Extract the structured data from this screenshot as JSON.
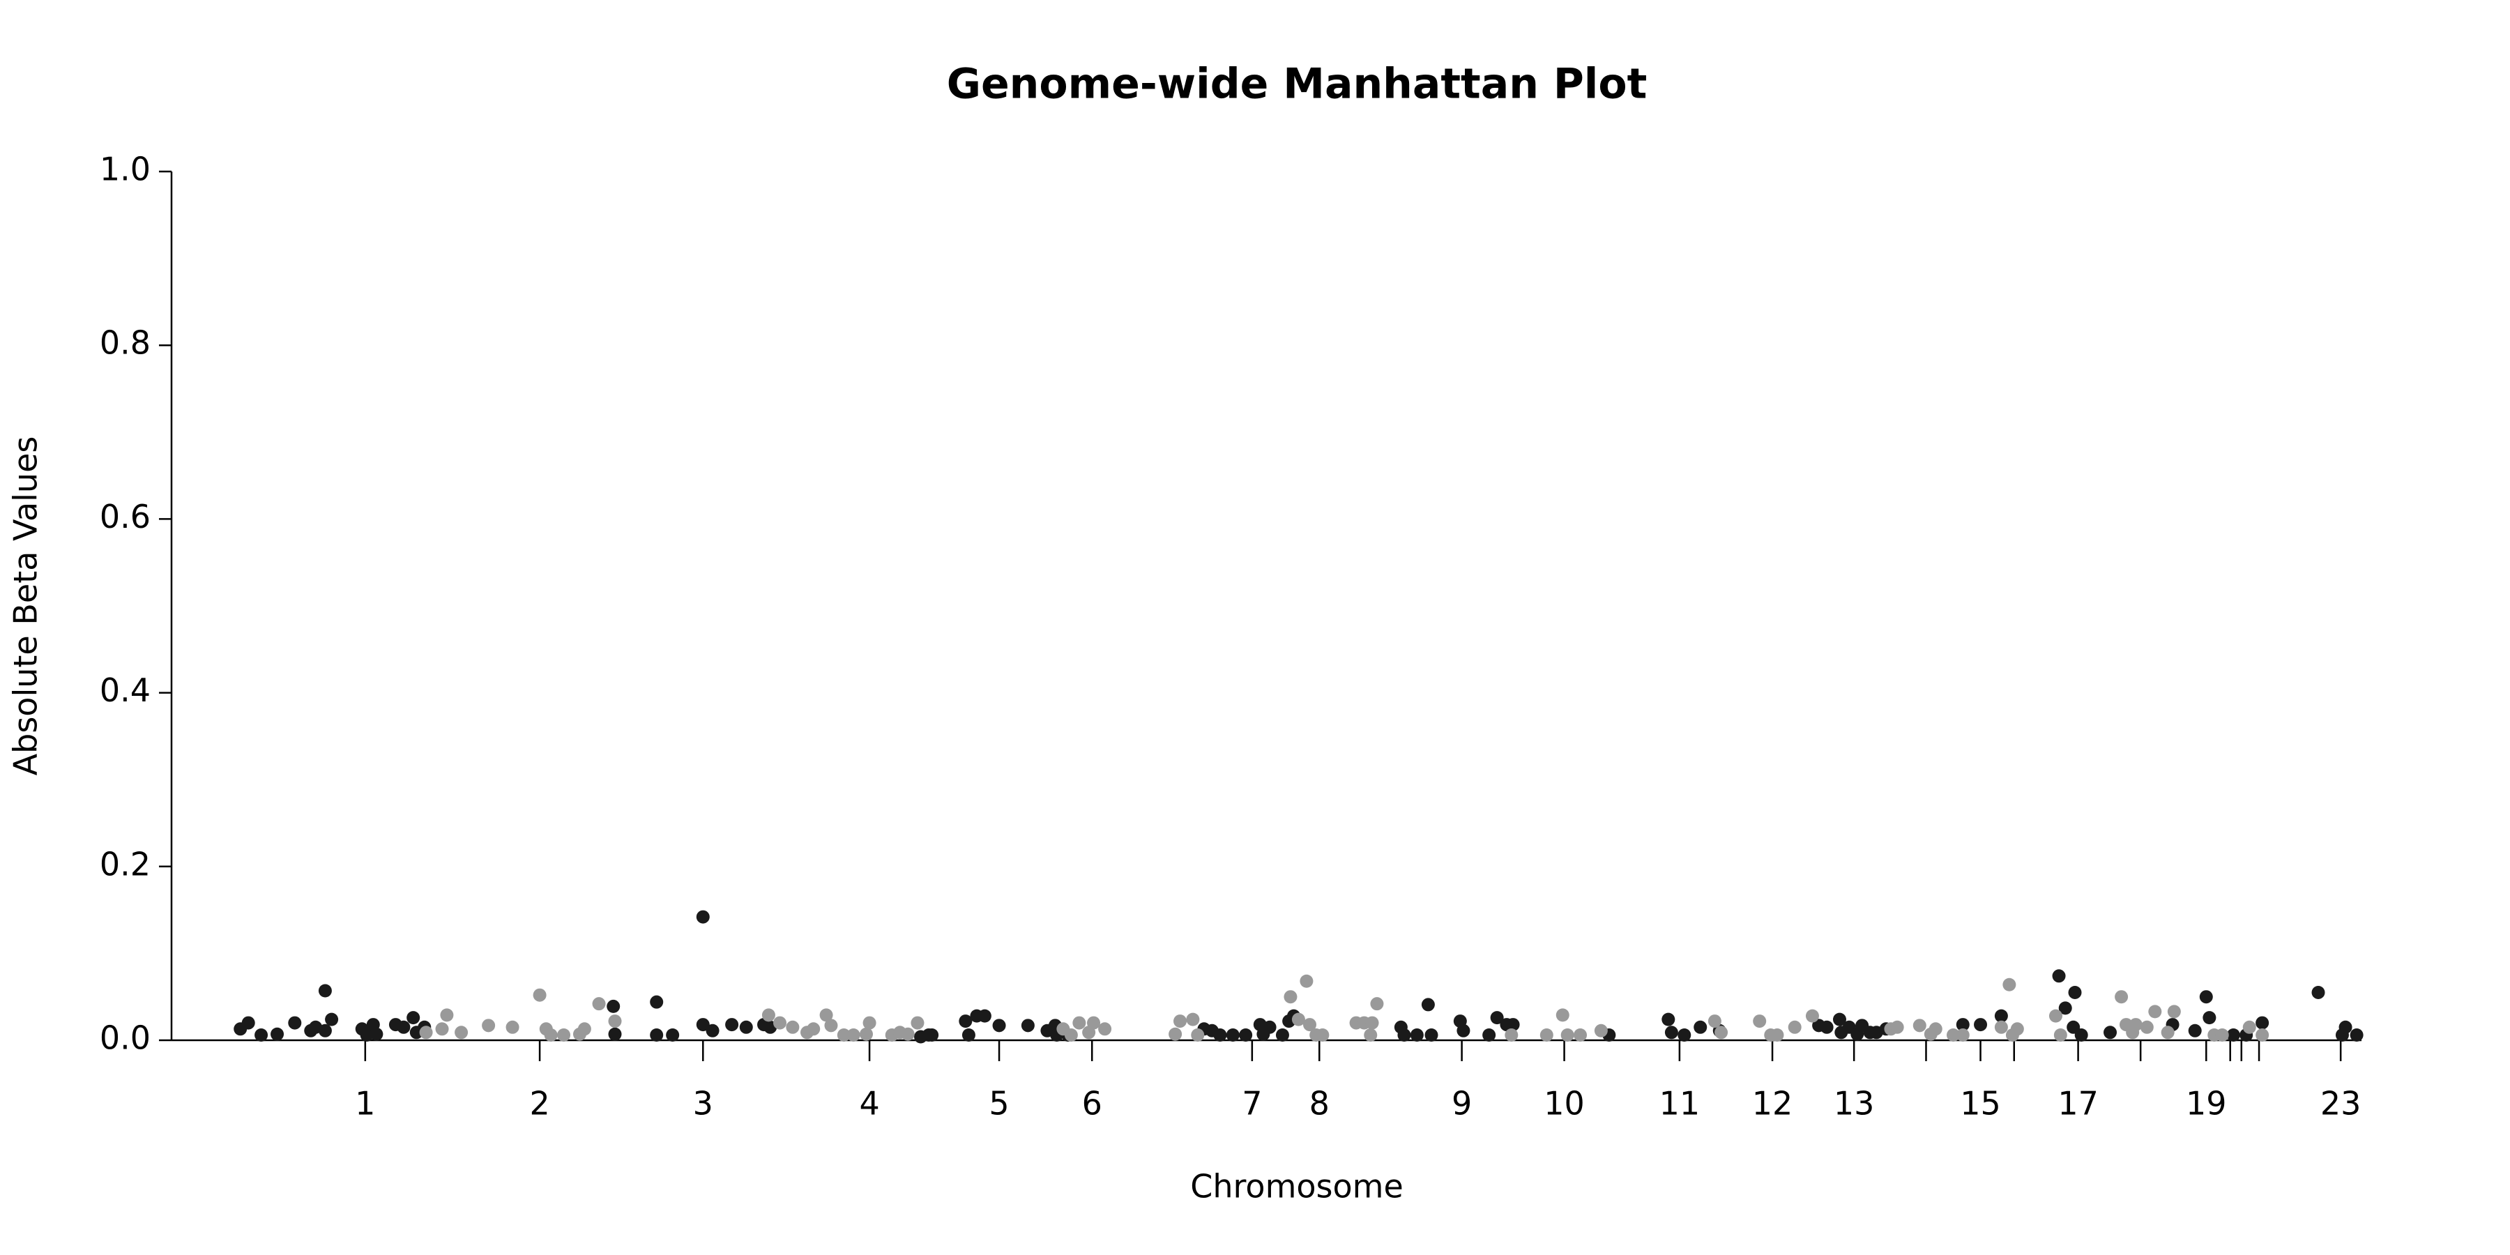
{
  "chart_data": {
    "type": "scatter",
    "title": "Genome-wide Manhattan Plot",
    "x_label": "Chromosome",
    "y_label": "Absolute Beta Values",
    "xlim": [
      0,
      1368
    ],
    "ylim": [
      0,
      1
    ],
    "yticks": [
      {
        "value": 0,
        "label": "0.0"
      },
      {
        "value": 0.2,
        "label": "0.2"
      },
      {
        "value": 0.4,
        "label": "0.4"
      },
      {
        "value": 0.6,
        "label": "0.6"
      },
      {
        "value": 0.8,
        "label": "0.8"
      },
      {
        "value": 1,
        "label": "1.0"
      }
    ],
    "xticks": [
      {
        "value": 121,
        "label": "1"
      },
      {
        "value": 230,
        "label": "2"
      },
      {
        "value": 332,
        "label": "3"
      },
      {
        "value": 436,
        "label": "4"
      },
      {
        "value": 517,
        "label": "5"
      },
      {
        "value": 575,
        "label": "6"
      },
      {
        "value": 675,
        "label": "7"
      },
      {
        "value": 717,
        "label": "8"
      },
      {
        "value": 806,
        "label": "9"
      },
      {
        "value": 870,
        "label": "10"
      },
      {
        "value": 942,
        "label": "11"
      },
      {
        "value": 1000,
        "label": "12"
      },
      {
        "value": 1051,
        "label": "13"
      },
      {
        "value": 1096,
        "label": null
      },
      {
        "value": 1130,
        "label": "15"
      },
      {
        "value": 1151,
        "label": null
      },
      {
        "value": 1191,
        "label": "17"
      },
      {
        "value": 1230,
        "label": null
      },
      {
        "value": 1271,
        "label": "19"
      },
      {
        "value": 1286,
        "label": null
      },
      {
        "value": 1293,
        "label": null
      },
      {
        "value": 1304,
        "label": null
      },
      {
        "value": 1355,
        "label": "23"
      }
    ],
    "series": [
      {
        "color": "#1a1a1a",
        "x": [
          43,
          48,
          56,
          66,
          77,
          87,
          90,
          96,
          96,
          100,
          119,
          122,
          126,
          128,
          140,
          145,
          151,
          153,
          158,
          276,
          277,
          303,
          303,
          313,
          332,
          332,
          338,
          350,
          359,
          370,
          374,
          468,
          473,
          475,
          496,
          498,
          503,
          508,
          517,
          535,
          547,
          552,
          553,
          560,
          645,
          650,
          655,
          663,
          671,
          680,
          682,
          686,
          694,
          698,
          701,
          768,
          770,
          778,
          785,
          787,
          805,
          807,
          823,
          828,
          834,
          838,
          898,
          935,
          937,
          945,
          955,
          967,
          1029,
          1034,
          1042,
          1043,
          1048,
          1053,
          1056,
          1061,
          1065,
          1071,
          1119,
          1130,
          1143,
          1179,
          1183,
          1189,
          1188,
          1193,
          1211,
          1250,
          1264,
          1271,
          1273,
          1288,
          1296,
          1306,
          1341,
          1356,
          1358,
          1365
        ],
        "values": [
          0.013,
          0.02,
          0.006,
          0.007,
          0.02,
          0.011,
          0.015,
          0.057,
          0.011,
          0.024,
          0.013,
          0.006,
          0.018,
          0.007,
          0.018,
          0.015,
          0.026,
          0.009,
          0.015,
          0.039,
          0.007,
          0.044,
          0.006,
          0.006,
          0.142,
          0.018,
          0.011,
          0.018,
          0.015,
          0.018,
          0.015,
          0.004,
          0.006,
          0.006,
          0.022,
          0.006,
          0.028,
          0.028,
          0.017,
          0.017,
          0.011,
          0.017,
          0.006,
          0.006,
          0.013,
          0.011,
          0.006,
          0.006,
          0.006,
          0.018,
          0.007,
          0.015,
          0.006,
          0.022,
          0.028,
          0.015,
          0.006,
          0.006,
          0.041,
          0.006,
          0.022,
          0.011,
          0.006,
          0.026,
          0.018,
          0.018,
          0.006,
          0.024,
          0.009,
          0.006,
          0.015,
          0.011,
          0.017,
          0.015,
          0.024,
          0.009,
          0.015,
          0.007,
          0.017,
          0.009,
          0.009,
          0.013,
          0.018,
          0.018,
          0.028,
          0.074,
          0.037,
          0.055,
          0.015,
          0.006,
          0.009,
          0.018,
          0.011,
          0.05,
          0.026,
          0.006,
          0.006,
          0.02,
          0.055,
          0.006,
          0.015,
          0.006
        ]
      },
      {
        "color": "#999999",
        "x": [
          159,
          169,
          172,
          181,
          198,
          213,
          230,
          234,
          237,
          245,
          255,
          258,
          267,
          277,
          373,
          380,
          388,
          397,
          401,
          409,
          412,
          420,
          426,
          434,
          436,
          450,
          455,
          460,
          466,
          557,
          562,
          567,
          573,
          576,
          583,
          627,
          630,
          638,
          641,
          699,
          704,
          709,
          711,
          715,
          719,
          740,
          745,
          750,
          749,
          753,
          837,
          859,
          869,
          872,
          880,
          893,
          964,
          968,
          992,
          999,
          1003,
          1014,
          1025,
          1074,
          1078,
          1092,
          1099,
          1102,
          1113,
          1119,
          1143,
          1148,
          1150,
          1153,
          1177,
          1180,
          1218,
          1221,
          1225,
          1227,
          1234,
          1239,
          1247,
          1251,
          1276,
          1281,
          1298,
          1306
        ],
        "values": [
          0.009,
          0.013,
          0.029,
          0.009,
          0.017,
          0.015,
          0.052,
          0.013,
          0.006,
          0.006,
          0.007,
          0.013,
          0.042,
          0.022,
          0.029,
          0.02,
          0.015,
          0.009,
          0.013,
          0.029,
          0.017,
          0.006,
          0.006,
          0.007,
          0.02,
          0.006,
          0.009,
          0.007,
          0.02,
          0.013,
          0.006,
          0.02,
          0.009,
          0.02,
          0.013,
          0.007,
          0.022,
          0.024,
          0.006,
          0.05,
          0.024,
          0.068,
          0.018,
          0.006,
          0.006,
          0.02,
          0.02,
          0.02,
          0.006,
          0.042,
          0.006,
          0.006,
          0.029,
          0.006,
          0.006,
          0.011,
          0.022,
          0.009,
          0.022,
          0.006,
          0.006,
          0.015,
          0.028,
          0.013,
          0.015,
          0.017,
          0.007,
          0.013,
          0.006,
          0.006,
          0.015,
          0.064,
          0.006,
          0.013,
          0.028,
          0.006,
          0.05,
          0.018,
          0.009,
          0.018,
          0.015,
          0.033,
          0.009,
          0.033,
          0.006,
          0.006,
          0.015,
          0.006
        ]
      }
    ]
  }
}
